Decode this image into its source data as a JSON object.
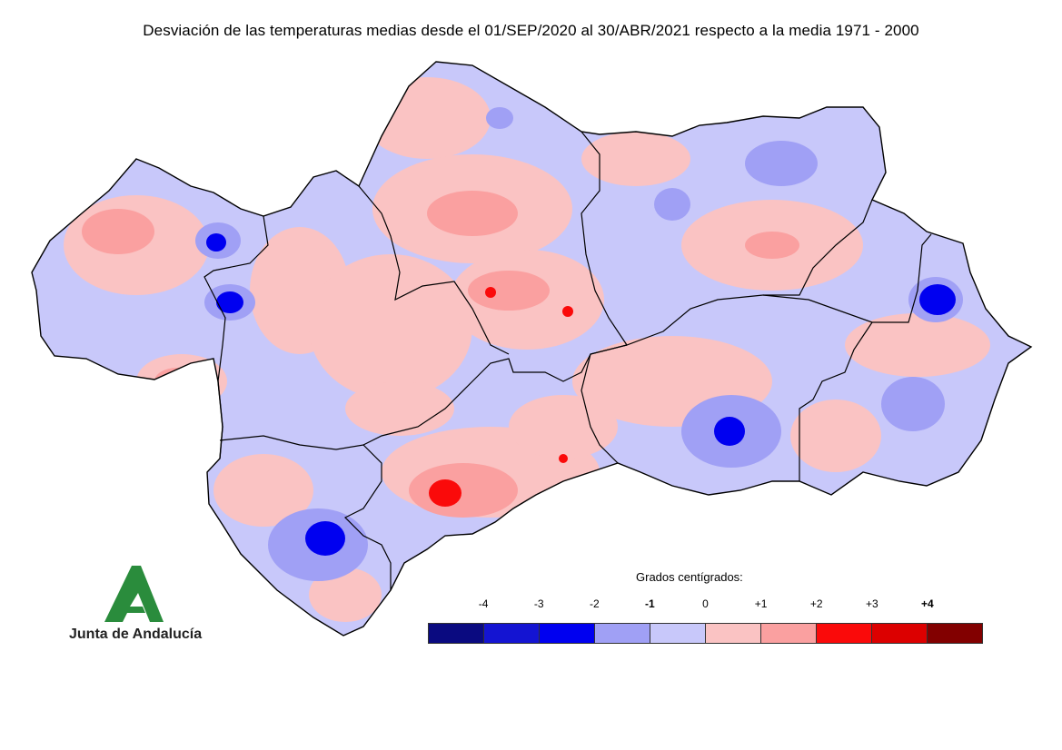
{
  "title": "Desviación de las temperaturas medias desde el 01/SEP/2020 al 30/ABR/2021 respecto a la media 1971 - 2000",
  "legend": {
    "title": "Grados centígrados:",
    "ticks": [
      {
        "label": "-4",
        "bold": false
      },
      {
        "label": "-3",
        "bold": false
      },
      {
        "label": "-2",
        "bold": false
      },
      {
        "label": "-1",
        "bold": true
      },
      {
        "label": "0",
        "bold": false
      },
      {
        "label": "+1",
        "bold": false
      },
      {
        "label": "+2",
        "bold": false
      },
      {
        "label": "+3",
        "bold": false
      },
      {
        "label": "+4",
        "bold": true
      }
    ],
    "colors": [
      "#0a0a80",
      "#1414d2",
      "#0000f0",
      "#a0a0f5",
      "#c8c8fa",
      "#fac3c3",
      "#faa0a0",
      "#fa0a0a",
      "#dc0000",
      "#820000"
    ]
  },
  "logo": {
    "text": "Junta de Andalucía",
    "color": "#2a8c3c"
  },
  "map": {
    "base_colors": {
      "cold_light": "#c8c8fa",
      "warm_light": "#fac3c3",
      "cold_mid": "#a0a0f5",
      "warm_mid": "#faa0a0",
      "cold_strong": "#0000f0",
      "warm_strong": "#fa0a0a"
    }
  }
}
